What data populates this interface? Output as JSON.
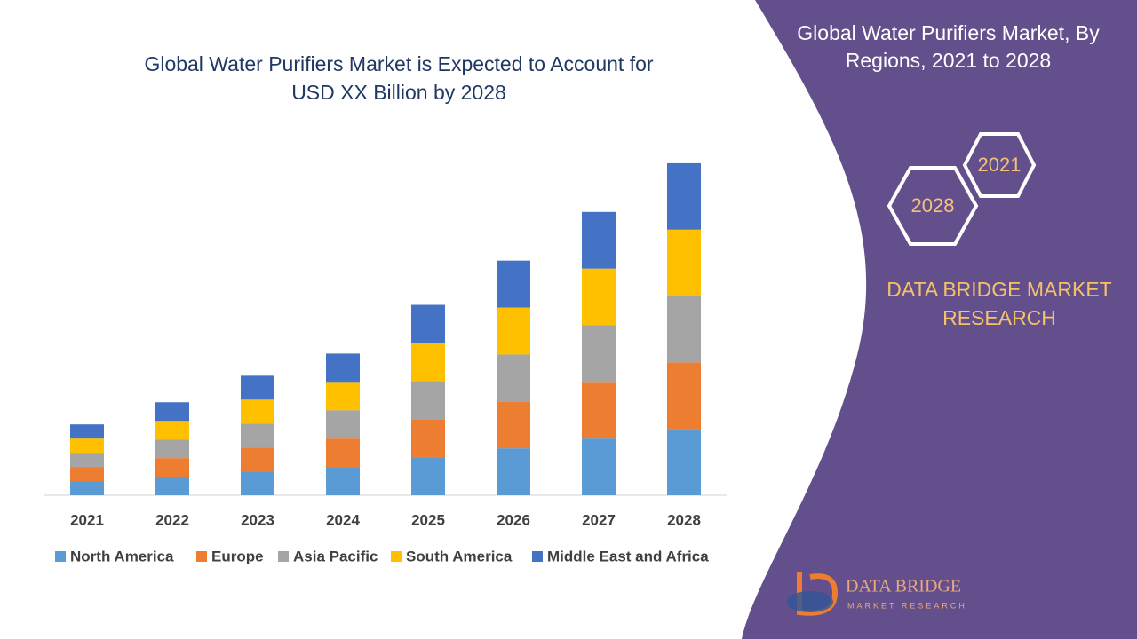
{
  "chart_data": {
    "type": "stacked_bar",
    "title": "Global Water Purifiers Market is Expected to Account for USD XX Billion by 2028",
    "categories": [
      "2021",
      "2022",
      "2023",
      "2024",
      "2025",
      "2026",
      "2027",
      "2028"
    ],
    "series": [
      {
        "name": "North America",
        "color": "#5b9bd5",
        "values": [
          1.6,
          2.1,
          2.7,
          3.2,
          4.3,
          5.3,
          6.4,
          7.5
        ]
      },
      {
        "name": "Europe",
        "color": "#ed7d31",
        "values": [
          1.6,
          2.1,
          2.7,
          3.2,
          4.3,
          5.3,
          6.4,
          7.5
        ]
      },
      {
        "name": "Asia Pacific",
        "color": "#a5a5a5",
        "values": [
          1.6,
          2.1,
          2.7,
          3.2,
          4.3,
          5.3,
          6.4,
          7.5
        ]
      },
      {
        "name": "South America",
        "color": "#ffc000",
        "values": [
          1.6,
          2.1,
          2.7,
          3.2,
          4.3,
          5.3,
          6.4,
          7.5
        ]
      },
      {
        "name": "Middle East and Africa",
        "color": "#4472c4",
        "values": [
          1.6,
          2.1,
          2.7,
          3.2,
          4.3,
          5.3,
          6.4,
          7.5
        ]
      }
    ],
    "ylim": [
      0,
      40
    ],
    "legend": "bottom"
  },
  "panel": {
    "title": "Global Water Purifiers Market, By Regions, 2021 to 2028",
    "hex_top": "2021",
    "hex_bottom": "2028",
    "brand": "DATA BRIDGE MARKET RESEARCH",
    "logo_name": "DATA BRIDGE",
    "logo_tagline": "MARKET RESEARCH"
  }
}
